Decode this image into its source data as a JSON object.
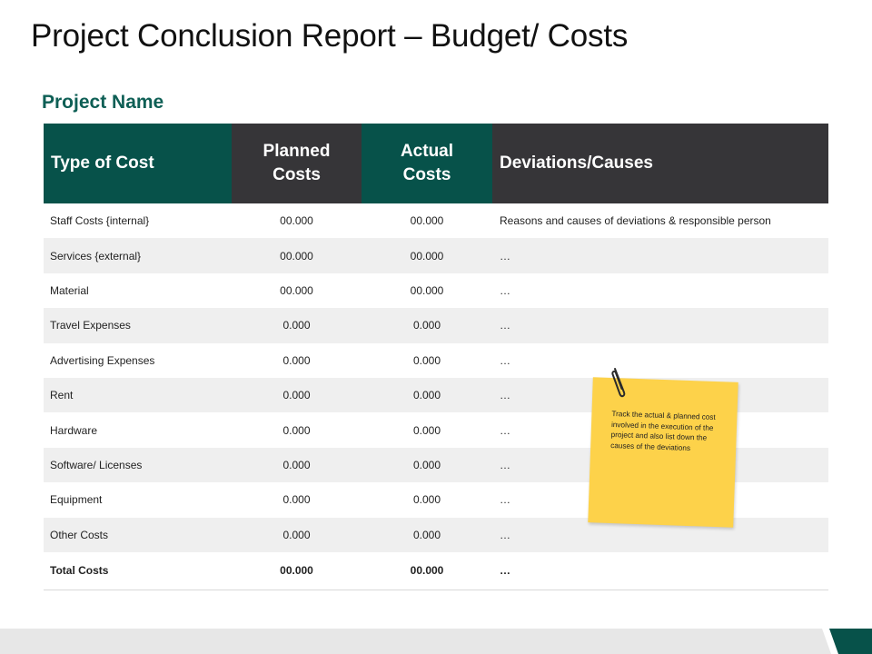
{
  "title": "Project Conclusion Report – Budget/ Costs",
  "project_name": "Project Name",
  "table": {
    "headers": {
      "type": "Type of Cost",
      "planned_line1": "Planned",
      "planned_line2": "Costs",
      "actual_line1": "Actual",
      "actual_line2": "Costs",
      "deviations": "Deviations/Causes"
    },
    "rows": [
      {
        "type": "Staff Costs {internal}",
        "planned": "00.000",
        "actual": "00.000",
        "deviation": "Reasons and causes of deviations & responsible person"
      },
      {
        "type": "Services {external}",
        "planned": "00.000",
        "actual": "00.000",
        "deviation": "…"
      },
      {
        "type": "Material",
        "planned": "00.000",
        "actual": "00.000",
        "deviation": "…"
      },
      {
        "type": "Travel  Expenses",
        "planned": "0.000",
        "actual": "0.000",
        "deviation": "…"
      },
      {
        "type": "Advertising Expenses",
        "planned": "0.000",
        "actual": "0.000",
        "deviation": "…"
      },
      {
        "type": "Rent",
        "planned": "0.000",
        "actual": "0.000",
        "deviation": "…"
      },
      {
        "type": "Hardware",
        "planned": "0.000",
        "actual": "0.000",
        "deviation": "…"
      },
      {
        "type": "Software/  Licenses",
        "planned": "0.000",
        "actual": "0.000",
        "deviation": "…"
      },
      {
        "type": "Equipment",
        "planned": "0.000",
        "actual": "0.000",
        "deviation": "…"
      },
      {
        "type": "Other Costs",
        "planned": "0.000",
        "actual": "0.000",
        "deviation": "…"
      }
    ],
    "total": {
      "type": "Total Costs",
      "planned": "00.000",
      "actual": "00.000",
      "deviation": "…"
    }
  },
  "note": {
    "text": "Track the actual & planned cost involved in the execution of the project and also list down the causes of the deviations"
  },
  "colors": {
    "teal": "#07524a",
    "dark": "#363538",
    "title_green": "#0e5f55",
    "note_yellow": "#fdd24a",
    "row_shade": "#efefef"
  }
}
